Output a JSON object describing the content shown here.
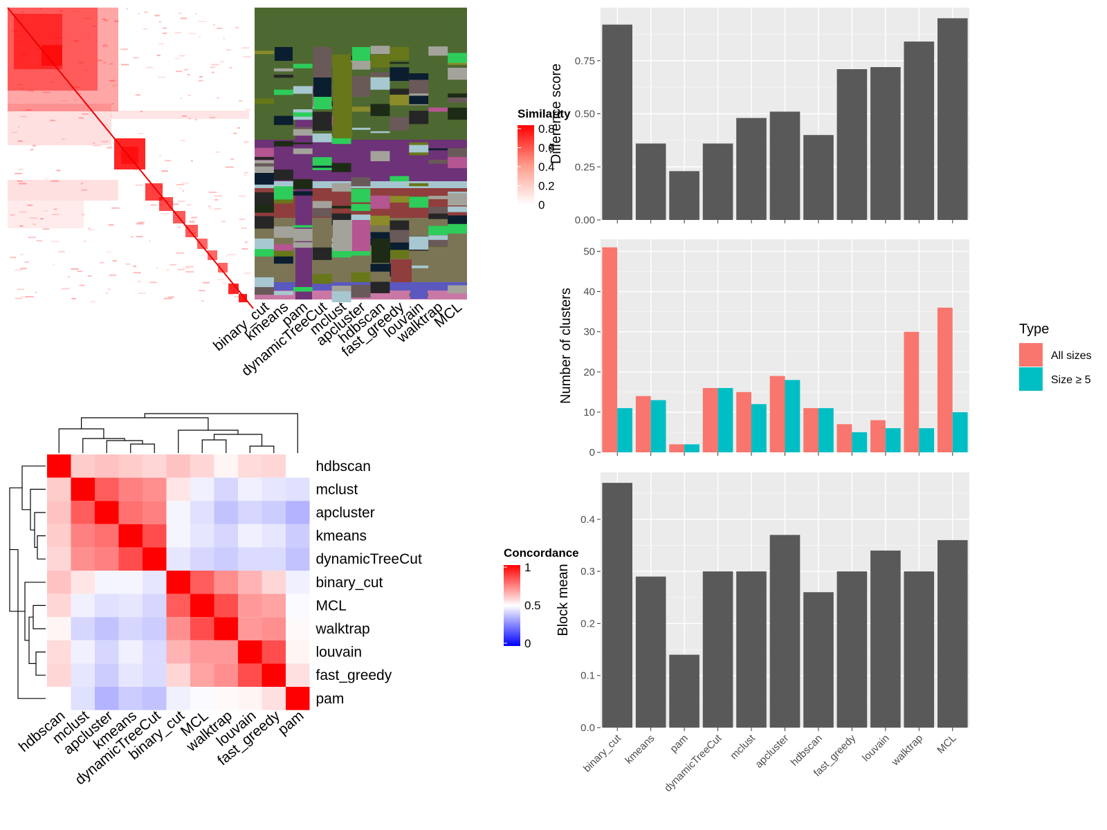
{
  "chart_data": [
    {
      "type": "heatmap",
      "panel": "similarity-matrix",
      "legend": {
        "title": "Similarity",
        "ticks": [
          "0.8",
          "0.6",
          "0.4",
          "0.2",
          "0"
        ]
      },
      "colors": {
        "high": "#ff0000",
        "low": "#ffffff"
      },
      "columns": [
        "binary_cut",
        "kmeans",
        "pam",
        "dynamicTreeCut",
        "mclust",
        "apcluster",
        "hdbscan",
        "fast_greedy",
        "louvain",
        "walktrap",
        "MCL"
      ]
    },
    {
      "type": "heatmap",
      "panel": "concordance",
      "legend": {
        "title": "Concordance",
        "ticks": [
          "1",
          "0.5",
          "0"
        ]
      },
      "colors": {
        "high": "#ff0000",
        "mid": "#ffffff",
        "low": "#0000ff"
      },
      "rows": [
        "hdbscan",
        "mclust",
        "apcluster",
        "kmeans",
        "dynamicTreeCut",
        "binary_cut",
        "MCL",
        "walktrap",
        "louvain",
        "fast_greedy",
        "pam"
      ],
      "columns": [
        "hdbscan",
        "mclust",
        "apcluster",
        "kmeans",
        "dynamicTreeCut",
        "binary_cut",
        "MCL",
        "walktrap",
        "louvain",
        "fast_greedy",
        "pam"
      ],
      "values": [
        [
          1.0,
          0.6,
          0.62,
          0.6,
          0.58,
          0.62,
          0.58,
          0.52,
          0.57,
          0.58,
          0.5
        ],
        [
          0.6,
          1.0,
          0.82,
          0.75,
          0.72,
          0.55,
          0.47,
          0.42,
          0.47,
          0.45,
          0.44
        ],
        [
          0.62,
          0.82,
          1.0,
          0.78,
          0.75,
          0.48,
          0.44,
          0.38,
          0.42,
          0.4,
          0.35
        ],
        [
          0.6,
          0.75,
          0.78,
          1.0,
          0.85,
          0.48,
          0.45,
          0.42,
          0.47,
          0.45,
          0.4
        ],
        [
          0.58,
          0.72,
          0.75,
          0.85,
          1.0,
          0.45,
          0.42,
          0.4,
          0.43,
          0.43,
          0.38
        ],
        [
          0.62,
          0.55,
          0.48,
          0.48,
          0.45,
          1.0,
          0.82,
          0.72,
          0.65,
          0.58,
          0.47
        ],
        [
          0.58,
          0.47,
          0.44,
          0.45,
          0.42,
          0.82,
          1.0,
          0.85,
          0.7,
          0.68,
          0.49
        ],
        [
          0.52,
          0.42,
          0.38,
          0.42,
          0.4,
          0.72,
          0.85,
          1.0,
          0.7,
          0.72,
          0.51
        ],
        [
          0.57,
          0.47,
          0.42,
          0.47,
          0.43,
          0.65,
          0.7,
          0.7,
          1.0,
          0.85,
          0.52
        ],
        [
          0.58,
          0.45,
          0.4,
          0.45,
          0.43,
          0.58,
          0.68,
          0.72,
          0.85,
          1.0,
          0.56
        ],
        [
          0.5,
          0.44,
          0.35,
          0.4,
          0.38,
          0.47,
          0.49,
          0.51,
          0.52,
          0.56,
          1.0
        ]
      ]
    },
    {
      "type": "bar",
      "panel": "difference-score",
      "ylabel": "Difference score",
      "categories": [
        "binary_cut",
        "kmeans",
        "pam",
        "dynamicTreeCut",
        "mclust",
        "apcluster",
        "hdbscan",
        "fast_greedy",
        "louvain",
        "walktrap",
        "MCL"
      ],
      "values": [
        0.92,
        0.36,
        0.23,
        0.36,
        0.48,
        0.51,
        0.4,
        0.71,
        0.72,
        0.84,
        0.95
      ],
      "ylim": [
        0,
        1.0
      ],
      "yticks": [
        0,
        0.25,
        0.5,
        0.75
      ],
      "ytick_labels": [
        "0.00",
        "0.25",
        "0.50",
        "0.75"
      ],
      "color": "#595959"
    },
    {
      "type": "bar",
      "panel": "number-of-clusters",
      "ylabel": "Number of clusters",
      "categories": [
        "binary_cut",
        "kmeans",
        "pam",
        "dynamicTreeCut",
        "mclust",
        "apcluster",
        "hdbscan",
        "fast_greedy",
        "louvain",
        "walktrap",
        "MCL"
      ],
      "series": [
        {
          "name": "All sizes",
          "values": [
            51,
            14,
            2,
            16,
            15,
            19,
            11,
            7,
            8,
            30,
            36
          ],
          "color": "#f8766d"
        },
        {
          "name": "Size ≥ 5",
          "values": [
            11,
            13,
            2,
            16,
            12,
            18,
            11,
            5,
            6,
            6,
            10
          ],
          "color": "#00bfc4"
        }
      ],
      "ylim": [
        0,
        53
      ],
      "yticks": [
        0,
        10,
        20,
        30,
        40,
        50
      ],
      "legend": {
        "title": "Type",
        "placement": "right"
      }
    },
    {
      "type": "bar",
      "panel": "block-mean",
      "ylabel": "Block mean",
      "categories": [
        "binary_cut",
        "kmeans",
        "pam",
        "dynamicTreeCut",
        "mclust",
        "apcluster",
        "hdbscan",
        "fast_greedy",
        "louvain",
        "walktrap",
        "MCL"
      ],
      "values": [
        0.47,
        0.29,
        0.14,
        0.3,
        0.3,
        0.37,
        0.26,
        0.3,
        0.34,
        0.3,
        0.36
      ],
      "ylim": [
        0,
        0.49
      ],
      "yticks": [
        0,
        0.1,
        0.2,
        0.3,
        0.4
      ],
      "ytick_labels": [
        "0.0",
        "0.1",
        "0.2",
        "0.3",
        "0.4"
      ],
      "color": "#595959"
    }
  ]
}
